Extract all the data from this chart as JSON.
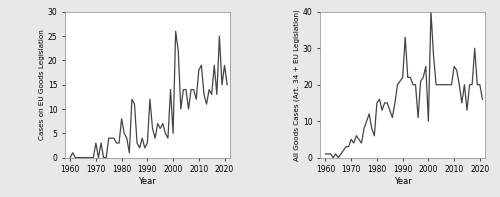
{
  "years1": [
    1960,
    1961,
    1962,
    1963,
    1964,
    1965,
    1966,
    1967,
    1968,
    1969,
    1970,
    1971,
    1972,
    1973,
    1974,
    1975,
    1976,
    1977,
    1978,
    1979,
    1980,
    1981,
    1982,
    1983,
    1984,
    1985,
    1986,
    1987,
    1988,
    1989,
    1990,
    1991,
    1992,
    1993,
    1994,
    1995,
    1996,
    1997,
    1998,
    1999,
    2000,
    2001,
    2002,
    2003,
    2004,
    2005,
    2006,
    2007,
    2008,
    2009,
    2010,
    2011,
    2012,
    2013,
    2014,
    2015,
    2016,
    2017,
    2018,
    2019,
    2020,
    2021
  ],
  "values1": [
    0,
    1,
    0,
    0,
    0,
    0,
    0,
    0,
    0,
    0,
    3,
    0,
    3,
    0,
    0,
    4,
    4,
    4,
    3,
    3,
    8,
    5,
    4,
    1,
    12,
    11,
    3,
    2,
    4,
    2,
    3,
    12,
    6,
    4,
    7,
    6,
    7,
    5,
    4,
    14,
    5,
    26,
    22,
    10,
    14,
    14,
    10,
    14,
    14,
    12,
    18,
    19,
    13,
    11,
    14,
    13,
    19,
    13,
    25,
    15,
    19,
    15
  ],
  "years2": [
    1960,
    1961,
    1962,
    1963,
    1964,
    1965,
    1966,
    1967,
    1968,
    1969,
    1970,
    1971,
    1972,
    1973,
    1974,
    1975,
    1976,
    1977,
    1978,
    1979,
    1980,
    1981,
    1982,
    1983,
    1984,
    1985,
    1986,
    1987,
    1988,
    1989,
    1990,
    1991,
    1992,
    1993,
    1994,
    1995,
    1996,
    1997,
    1998,
    1999,
    2000,
    2001,
    2002,
    2003,
    2004,
    2005,
    2006,
    2007,
    2008,
    2009,
    2010,
    2011,
    2012,
    2013,
    2014,
    2015,
    2016,
    2017,
    2018,
    2019,
    2020,
    2021
  ],
  "values2": [
    1,
    1,
    1,
    0,
    1,
    0,
    1,
    2,
    3,
    3,
    5,
    4,
    6,
    5,
    4,
    8,
    10,
    12,
    8,
    6,
    15,
    16,
    13,
    15,
    15,
    13,
    11,
    15,
    20,
    21,
    22,
    33,
    22,
    22,
    20,
    20,
    11,
    21,
    22,
    25,
    10,
    40,
    28,
    20,
    20,
    20,
    20,
    20,
    20,
    20,
    25,
    24,
    20,
    15,
    20,
    13,
    20,
    20,
    30,
    20,
    20,
    16
  ],
  "ylabel1": "Cases on EU Goods Legislation",
  "ylabel2": "All Goods Cases (Art. 34 + EU Legislation)",
  "xlabel": "Year",
  "ylim1": [
    0,
    30
  ],
  "ylim2": [
    0,
    40
  ],
  "yticks1": [
    0,
    5,
    10,
    15,
    20,
    25,
    30
  ],
  "yticks2": [
    0,
    10,
    20,
    30,
    40
  ],
  "xticks": [
    1960,
    1970,
    1980,
    1990,
    2000,
    2010,
    2020
  ],
  "line_color": "#444444",
  "bg_color": "#ffffff",
  "outer_bg": "#e8e8e8",
  "line_width": 0.9,
  "tick_fontsize": 5.5,
  "label_fontsize": 6.0,
  "ylabel_fontsize": 5.2
}
